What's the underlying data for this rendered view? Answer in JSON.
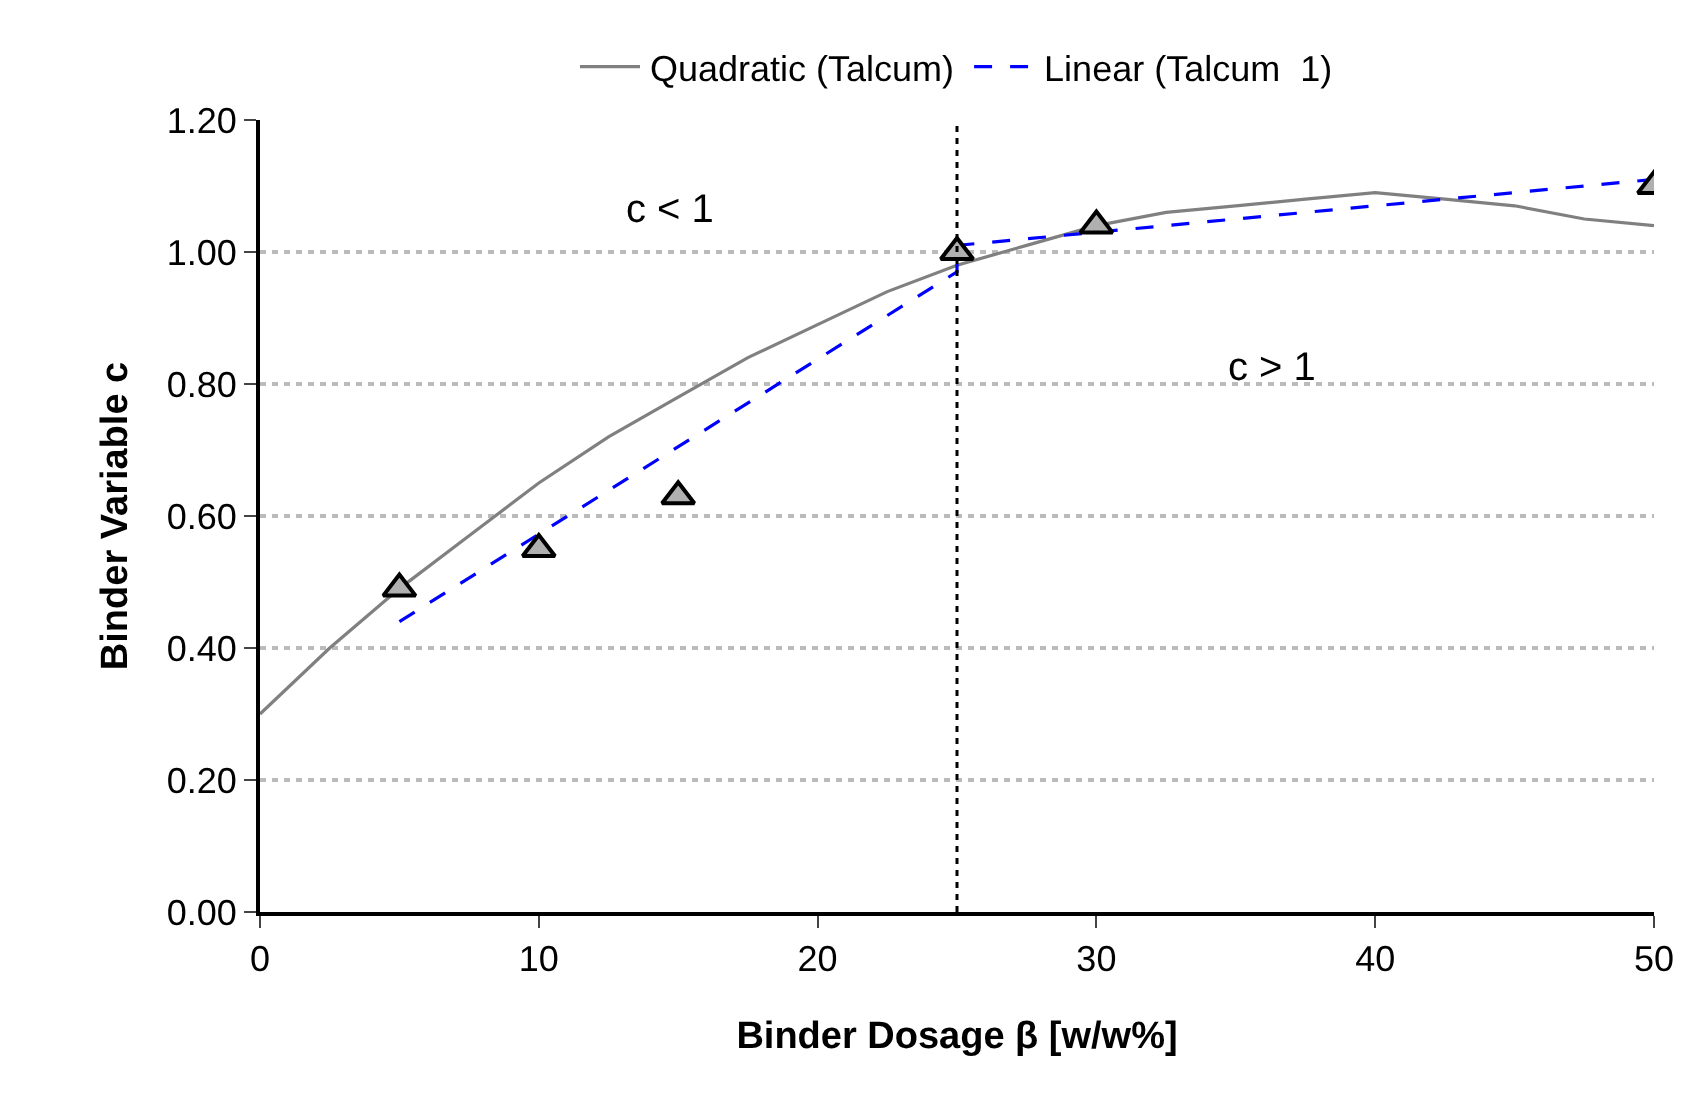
{
  "chart_data": {
    "type": "line",
    "xlabel": "Binder Dosage β [w/w%]",
    "ylabel": "Binder Variable c",
    "xlim": [
      0,
      50
    ],
    "xticks": [
      0,
      10,
      20,
      30,
      40,
      50
    ],
    "ylim": [
      0,
      1.2
    ],
    "yticks": [
      {
        "value": 0,
        "label": "0.00"
      },
      {
        "value": 0.2,
        "label": "0.20"
      },
      {
        "value": 0.4,
        "label": "0.40"
      },
      {
        "value": 0.6,
        "label": "0.60"
      },
      {
        "value": 0.8,
        "label": "0.80"
      },
      {
        "value": 1,
        "label": "1.00"
      },
      {
        "value": 1.2,
        "label": "1.20"
      }
    ],
    "grid": "y",
    "legend": "top",
    "series": [
      {
        "name": "Quadratic (Talcum)",
        "color": "#808080",
        "line_style": "solid",
        "marker": "none",
        "x": [
          0,
          2.5,
          5,
          7.5,
          10,
          12.5,
          15,
          17.5,
          20,
          22.5,
          25,
          27.5,
          30,
          32.5,
          35,
          37.5,
          40,
          42.5,
          45,
          47.5,
          50
        ],
        "values": [
          0.3,
          0.4,
          0.49,
          0.57,
          0.65,
          0.72,
          0.78,
          0.84,
          0.89,
          0.94,
          0.98,
          1.01,
          1.04,
          1.06,
          1.07,
          1.08,
          1.09,
          1.08,
          1.07,
          1.05,
          1.04
        ]
      },
      {
        "name": "Linear (Talcum  1)",
        "color": "#0000ff",
        "line_style": "dashed",
        "marker": "none",
        "x": [
          5,
          25,
          25,
          50
        ],
        "values": [
          0.44,
          0.97,
          1.01,
          1.11
        ]
      },
      {
        "type": "scatter",
        "color": "#b0b0b0",
        "marker": "triangle",
        "x": [
          5,
          10,
          15,
          25,
          30,
          50
        ],
        "values": [
          0.49,
          0.55,
          0.63,
          1.0,
          1.04,
          1.1
        ]
      }
    ],
    "ref_lines": [
      {
        "axis": "x",
        "value": 25,
        "color": "#000000",
        "line_style": "dotted"
      }
    ],
    "annotations": [
      "c < 1",
      "c > 1"
    ]
  }
}
